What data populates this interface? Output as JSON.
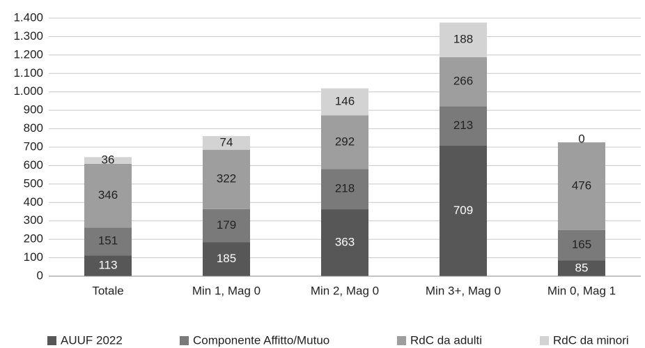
{
  "chart_data": {
    "type": "stacked_bar",
    "categories": [
      "Totale",
      "Min 1, Mag 0",
      "Min 2, Mag 0",
      "Min 3+, Mag 0",
      "Min 0, Mag 1"
    ],
    "series": [
      {
        "name": "AUUF 2022",
        "color": "#575757",
        "values": [
          113,
          185,
          363,
          709,
          85
        ]
      },
      {
        "name": "Componente Affitto/Mutuo",
        "color": "#7a7a7a",
        "values": [
          151,
          179,
          218,
          213,
          165
        ]
      },
      {
        "name": "RdC da adulti",
        "color": "#9e9e9e",
        "values": [
          346,
          322,
          292,
          266,
          476
        ]
      },
      {
        "name": "RdC da minori",
        "color": "#d3d3d3",
        "values": [
          36,
          74,
          146,
          188,
          0
        ]
      }
    ],
    "ylim": [
      0,
      1400
    ],
    "yticks": [
      0,
      100,
      200,
      300,
      400,
      500,
      600,
      700,
      800,
      900,
      {
        "value": 1000,
        "label": "1.000"
      },
      {
        "value": 1100,
        "label": "1.100"
      },
      {
        "value": 1200,
        "label": "1.200"
      },
      {
        "value": 1300,
        "label": "1.300"
      },
      {
        "value": 1400,
        "label": "1.400"
      }
    ],
    "grid": true
  }
}
